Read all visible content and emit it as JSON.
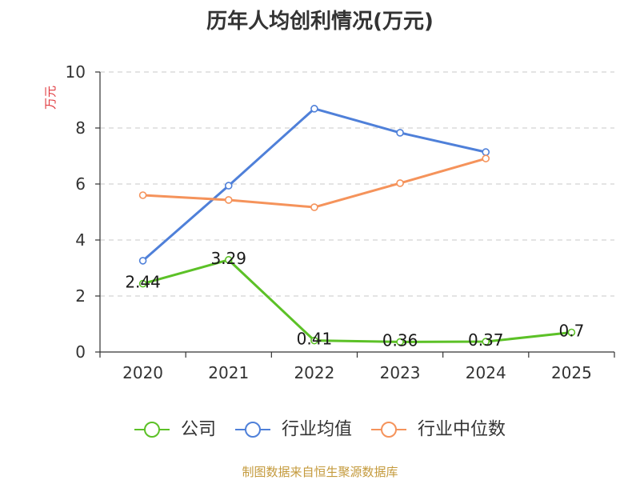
{
  "source_note": "制图数据来自恒生聚源数据库",
  "chart_data": {
    "type": "line",
    "title": "历年人均创利情况(万元)",
    "xlabel": "",
    "ylabel": "万元",
    "ylabel_color": "#e0393e",
    "categories": [
      "2020",
      "2021",
      "2022",
      "2023",
      "2024",
      "2025"
    ],
    "ylim": [
      0,
      10
    ],
    "yticks": [
      0,
      2,
      4,
      6,
      8,
      10
    ],
    "grid": true,
    "legend": "bottom-center",
    "series": [
      {
        "name": "公司",
        "color": "#5cc127",
        "show_labels": true,
        "values": [
          2.44,
          3.29,
          0.41,
          0.36,
          0.37,
          0.7
        ]
      },
      {
        "name": "行业均值",
        "color": "#4f80d9",
        "show_labels": false,
        "values": [
          3.26,
          5.94,
          8.69,
          7.83,
          7.14,
          null
        ]
      },
      {
        "name": "行业中位数",
        "color": "#f5935b",
        "show_labels": false,
        "values": [
          5.6,
          5.43,
          5.17,
          6.03,
          6.91,
          null
        ]
      }
    ]
  }
}
